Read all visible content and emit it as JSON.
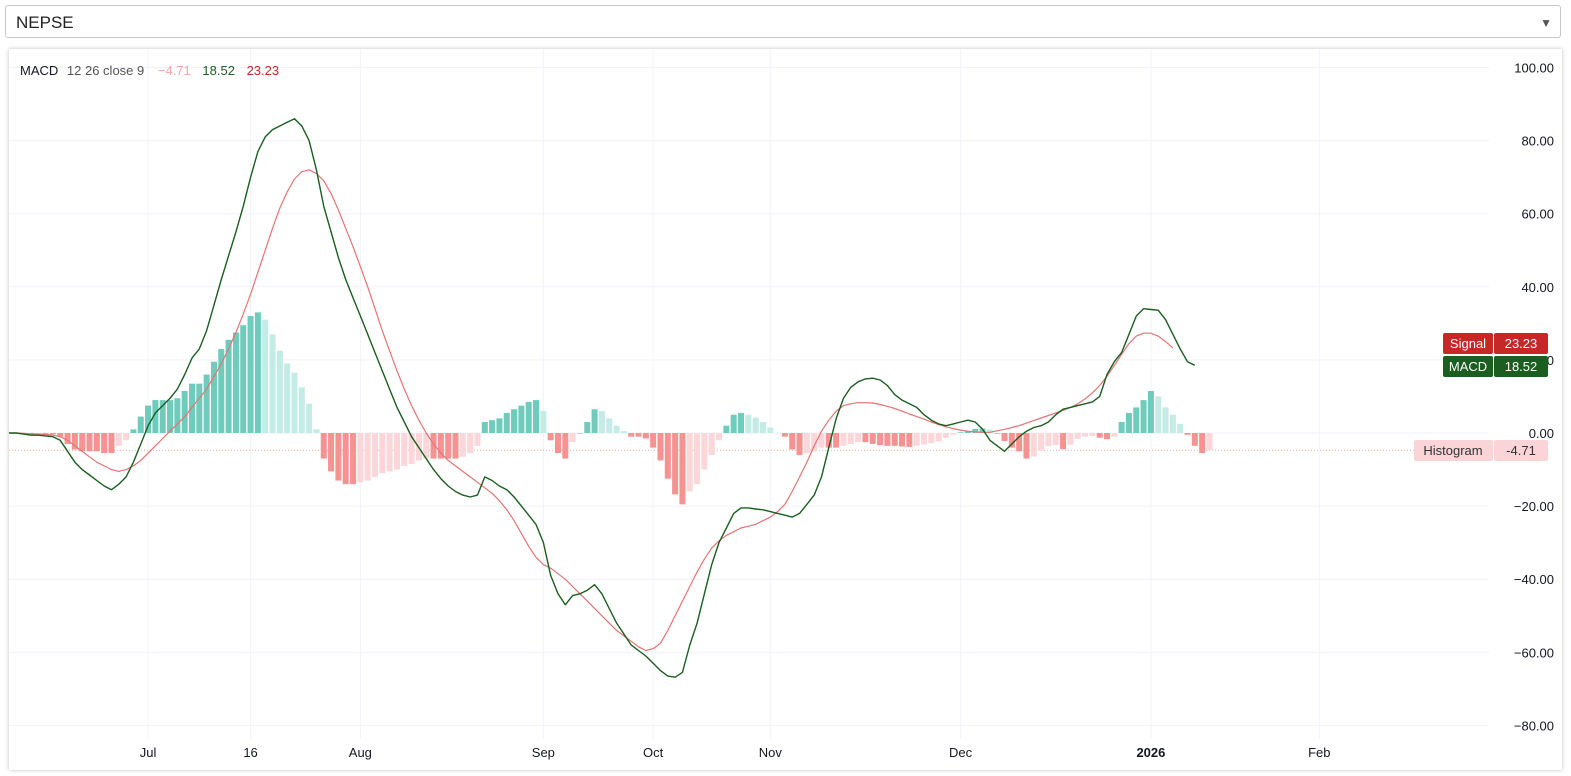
{
  "selector": {
    "value": "NEPSE"
  },
  "legend": {
    "name": "MACD",
    "params": "12 26 close 9",
    "histogram_value": "−4.71",
    "macd_value": "18.52",
    "signal_value": "23.23"
  },
  "badges": {
    "signal": {
      "label": "Signal",
      "value": "23.23"
    },
    "macd": {
      "label": "MACD",
      "value": "18.52"
    },
    "histogram": {
      "label": "Histogram",
      "value": "-4.71"
    }
  },
  "colors": {
    "macd_line": "#1b5e20",
    "signal_line": "#e57373",
    "hist_pos_strong": "#6fcbbc",
    "hist_pos_weak": "#c4ece6",
    "hist_neg_strong": "#f79292",
    "hist_neg_weak": "#fcd6d9",
    "signal_badge": "#c62828",
    "macd_badge": "#1b5e20",
    "histogram_badge": "#fbd4d7"
  },
  "chart_data": {
    "type": "line",
    "indicator": "MACD",
    "y_ticks": [
      "100.00",
      "80.00",
      "60.00",
      "40.00",
      "20.00",
      "0.00",
      "−20.00",
      "−40.00",
      "−60.00",
      "−80.00"
    ],
    "ylim": [
      -80,
      100
    ],
    "x_ticks": [
      {
        "label": "Jul",
        "index": 19,
        "bold": false
      },
      {
        "label": "16",
        "index": 33,
        "bold": false
      },
      {
        "label": "Aug",
        "index": 48,
        "bold": false
      },
      {
        "label": "Sep",
        "index": 73,
        "bold": false
      },
      {
        "label": "Oct",
        "index": 88,
        "bold": false
      },
      {
        "label": "Nov",
        "index": 104,
        "bold": false
      },
      {
        "label": "Dec",
        "index": 130,
        "bold": false
      },
      {
        "label": "2026",
        "index": 156,
        "bold": true
      },
      {
        "label": "Feb",
        "index": 179,
        "bold": false
      }
    ],
    "series": [
      {
        "name": "MACD",
        "values": [
          0.0,
          0.0,
          -0.3,
          -0.6,
          -0.6,
          -0.8,
          -1.0,
          -2.0,
          -5.0,
          -8.0,
          -10.0,
          -11.5,
          -13.0,
          -14.5,
          -15.5,
          -14.0,
          -12.0,
          -8.0,
          -3.0,
          2.0,
          5.5,
          7.5,
          9.5,
          12.0,
          16.0,
          20.5,
          23.0,
          28.0,
          35.0,
          42.0,
          48.5,
          55.0,
          62.0,
          70.0,
          77.0,
          81.0,
          83.0,
          84.0,
          85.0,
          86.0,
          84.0,
          80.0,
          72.0,
          62.0,
          55.0,
          48.0,
          42.0,
          37.0,
          32.0,
          27.0,
          22.0,
          17.0,
          12.0,
          7.0,
          3.0,
          -1.0,
          -4.0,
          -7.0,
          -10.0,
          -12.5,
          -14.5,
          -16.0,
          -17.0,
          -17.5,
          -17.0,
          -12.0,
          -13.0,
          -14.5,
          -15.5,
          -17.5,
          -20.0,
          -22.5,
          -25.0,
          -30.0,
          -39.0,
          -44.0,
          -47.0,
          -44.5,
          -44.0,
          -43.0,
          -41.5,
          -44.0,
          -48.0,
          -52.0,
          -55.0,
          -58.0,
          -59.5,
          -61.0,
          -63.0,
          -65.0,
          -66.5,
          -66.8,
          -65.5,
          -58.0,
          -52.0,
          -44.0,
          -36.0,
          -30.0,
          -26.0,
          -22.0,
          -20.5,
          -20.5,
          -20.8,
          -21.0,
          -21.5,
          -22.0,
          -22.5,
          -23.0,
          -22.0,
          -19.5,
          -17.0,
          -12.0,
          -4.0,
          4.0,
          9.5,
          12.5,
          14.0,
          14.8,
          15.0,
          14.5,
          13.0,
          10.5,
          9.0,
          8.0,
          7.0,
          5.0,
          3.5,
          2.5,
          2.0,
          2.5,
          3.0,
          3.5,
          3.0,
          1.0,
          -2.0,
          -3.5,
          -5.0,
          -3.0,
          -1.0,
          0.5,
          1.5,
          2.0,
          3.0,
          5.0,
          6.5,
          7.0,
          7.5,
          8.0,
          8.5,
          10.0,
          16.0,
          19.5,
          22.0,
          27.0,
          32.0,
          34.0,
          33.8,
          33.6,
          31.0,
          27.0,
          23.0,
          19.5,
          18.52
        ]
      },
      {
        "name": "Signal",
        "values": [
          0.0,
          0.0,
          -0.1,
          -0.2,
          -0.3,
          -0.4,
          -0.6,
          -1.0,
          -2.0,
          -3.5,
          -5.0,
          -6.5,
          -8.0,
          -9.0,
          -10.0,
          -10.5,
          -10.0,
          -9.0,
          -7.5,
          -5.5,
          -3.5,
          -1.5,
          0.5,
          2.5,
          4.5,
          7.0,
          9.5,
          12.0,
          15.5,
          19.0,
          23.0,
          27.5,
          32.5,
          38.0,
          44.0,
          50.0,
          56.0,
          61.5,
          66.0,
          69.5,
          71.5,
          72.0,
          71.0,
          69.0,
          65.5,
          61.0,
          56.0,
          51.0,
          45.5,
          40.0,
          34.0,
          28.0,
          22.5,
          17.0,
          12.0,
          7.5,
          3.5,
          0.0,
          -3.0,
          -5.5,
          -7.5,
          -9.0,
          -10.5,
          -12.0,
          -13.5,
          -15.0,
          -16.5,
          -18.5,
          -21.0,
          -24.0,
          -27.5,
          -31.0,
          -34.0,
          -36.0,
          -37.0,
          -38.5,
          -40.0,
          -42.0,
          -44.0,
          -46.0,
          -48.0,
          -50.0,
          -52.0,
          -54.0,
          -55.5,
          -57.0,
          -58.5,
          -59.5,
          -59.0,
          -57.5,
          -54.0,
          -50.0,
          -46.0,
          -42.0,
          -38.0,
          -34.5,
          -31.5,
          -29.5,
          -28.0,
          -27.0,
          -26.0,
          -25.5,
          -25.0,
          -24.0,
          -23.0,
          -21.5,
          -19.5,
          -16.0,
          -12.0,
          -8.0,
          -3.5,
          0.5,
          3.5,
          6.0,
          7.5,
          8.0,
          8.3,
          8.3,
          8.2,
          7.8,
          7.3,
          6.7,
          6.0,
          5.2,
          4.5,
          3.8,
          3.0,
          2.3,
          1.7,
          1.2,
          0.8,
          0.5,
          0.3,
          0.2,
          0.2,
          0.6,
          1.0,
          1.5,
          2.0,
          2.7,
          3.4,
          4.1,
          4.8,
          5.5,
          6.2,
          7.0,
          8.0,
          9.3,
          11.0,
          13.0,
          15.5,
          18.5,
          21.5,
          24.5,
          26.5,
          27.3,
          27.3,
          26.5,
          25.0,
          23.23
        ]
      },
      {
        "name": "Histogram",
        "values": [
          0.0,
          0.0,
          -0.2,
          -0.4,
          -0.3,
          -0.4,
          -0.4,
          -1.0,
          -3.0,
          -4.5,
          -5.0,
          -5.0,
          -5.0,
          -5.5,
          -5.5,
          -3.5,
          -2.0,
          1.0,
          4.5,
          7.5,
          9.0,
          9.0,
          9.0,
          9.5,
          11.5,
          13.5,
          13.5,
          16.0,
          19.5,
          23.0,
          25.5,
          27.5,
          29.5,
          32.0,
          33.0,
          31.0,
          27.0,
          22.5,
          19.0,
          16.5,
          12.5,
          8.0,
          1.0,
          -7.0,
          -10.5,
          -13.0,
          -14.0,
          -14.0,
          -13.5,
          -13.0,
          -12.0,
          -11.0,
          -10.5,
          -10.0,
          -9.0,
          -8.5,
          -7.5,
          -7.0,
          -7.0,
          -7.0,
          -7.0,
          -7.0,
          -6.5,
          -5.5,
          -3.5,
          3.0,
          3.5,
          4.0,
          5.5,
          6.5,
          7.5,
          8.5,
          9.0,
          6.0,
          -2.0,
          -5.5,
          -7.0,
          -2.5,
          0.0,
          3.0,
          6.5,
          6.0,
          4.0,
          2.0,
          0.5,
          -1.0,
          -1.0,
          -1.5,
          -4.0,
          -7.5,
          -12.5,
          -16.8,
          -19.5,
          -16.0,
          -14.0,
          -10.0,
          -6.0,
          -2.0,
          2.0,
          5.0,
          5.5,
          5.0,
          4.2,
          3.0,
          1.5,
          0.0,
          -1.0,
          -4.5,
          -6.0,
          -5.5,
          -5.0,
          -4.0,
          -4.0,
          -4.0,
          -3.5,
          -3.0,
          -2.5,
          -2.5,
          -3.0,
          -3.3,
          -3.5,
          -3.5,
          -3.7,
          -3.8,
          -3.5,
          -3.1,
          -2.8,
          -2.3,
          -1.3,
          -0.5,
          0.2,
          0.5,
          1.1,
          1.2,
          1.0,
          -0.2,
          -2.2,
          -4.0,
          -5.0,
          -7.0,
          -6.4,
          -4.8,
          -3.6,
          -3.3,
          -4.4,
          -3.2,
          -1.6,
          -1.0,
          -0.8,
          -1.3,
          -1.7,
          -1.0,
          3.0,
          5.5,
          7.0,
          9.0,
          11.5,
          10.0,
          7.0,
          5.0,
          2.5,
          -0.5,
          -3.5,
          -5.5,
          -4.71
        ]
      }
    ]
  }
}
